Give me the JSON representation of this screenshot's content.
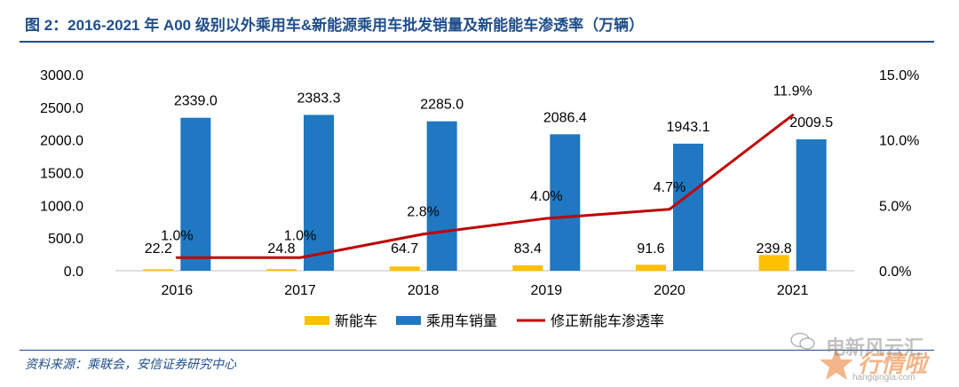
{
  "figure": {
    "title": "图 2：2016-2021 年 A00 级别以外乘用车&新能源乘用车批发销量及新能能车渗透率（万辆）",
    "source": "资料来源：乘联会，安信证券研究中心"
  },
  "watermark": {
    "line1": "电新风云汇",
    "line2": "行情啦",
    "line3": "hangqingla.com"
  },
  "colors": {
    "nev": "#FFC000",
    "total": "#1F78C1",
    "rate": "#C00000",
    "axis_text": "#000000",
    "title": "#1F4E8C"
  },
  "chart_data": {
    "type": "bar",
    "categories": [
      "2016",
      "2017",
      "2018",
      "2019",
      "2020",
      "2021"
    ],
    "series": [
      {
        "name": "新能车",
        "kind": "bar",
        "axis": "left",
        "values": [
          22.2,
          24.8,
          64.7,
          83.4,
          91.6,
          239.8
        ],
        "labels": [
          "22.2",
          "24.8",
          "64.7",
          "83.4",
          "91.6",
          "239.8"
        ]
      },
      {
        "name": "乘用车销量",
        "kind": "bar",
        "axis": "left",
        "values": [
          2339.0,
          2383.3,
          2285.0,
          2086.4,
          1943.1,
          2009.5
        ],
        "labels": [
          "2339.0",
          "2383.3",
          "2285.0",
          "2086.4",
          "1943.1",
          "2009.5"
        ]
      },
      {
        "name": "修正新能车渗透率",
        "kind": "line",
        "axis": "right",
        "values": [
          1.0,
          1.0,
          2.8,
          4.0,
          4.7,
          11.9
        ],
        "labels": [
          "1.0%",
          "1.0%",
          "2.8%",
          "4.0%",
          "4.7%",
          "11.9%"
        ]
      }
    ],
    "y_left": {
      "min": 0,
      "max": 3000,
      "ticks": [
        "0.0",
        "500.0",
        "1000.0",
        "1500.0",
        "2000.0",
        "2500.0",
        "3000.0"
      ]
    },
    "y_right": {
      "min": 0,
      "max": 15,
      "unit": "%",
      "ticks": [
        "0.0%",
        "5.0%",
        "10.0%",
        "15.0%"
      ]
    },
    "grid": false,
    "legend_position": "bottom"
  }
}
